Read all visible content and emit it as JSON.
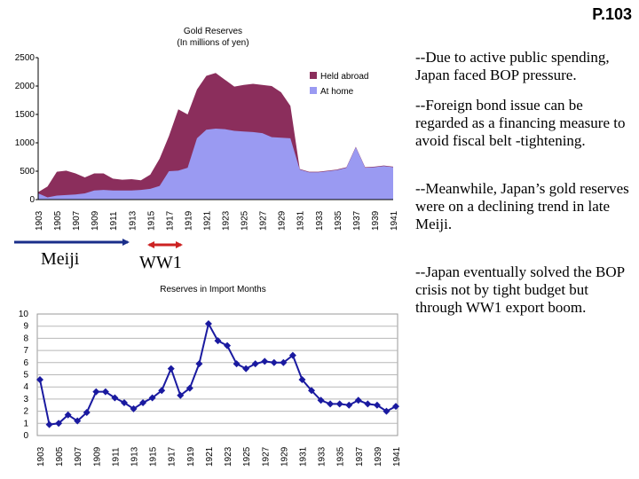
{
  "page_number": "P.103",
  "notes": [
    "--Due to active public spending, Japan faced BOP pressure.",
    "--Foreign bond issue can be regarded as a financing measure to avoid  fiscal belt -tightening.",
    "--Meanwhile, Japan’s gold reserves were on a declining trend in late Meiji.",
    "--Japan eventually solved the BOP crisis not by tight budget but through WW1 export boom."
  ],
  "eras": {
    "meiji": "Meiji",
    "ww1": "WW1"
  },
  "colors": {
    "held_abroad": "#8b2e5c",
    "at_home": "#9a9af2",
    "line": "#1a1aa0",
    "arrow_meiji": "#1a2e8a",
    "arrow_ww1": "#cc2222"
  },
  "chart_data": [
    {
      "type": "area",
      "title": "Gold Reserves",
      "subtitle": "(In millions of yen)",
      "x_ticks": [
        "1903",
        "1905",
        "1907",
        "1909",
        "1911",
        "1913",
        "1915",
        "1917",
        "1919",
        "1921",
        "1923",
        "1925",
        "1927",
        "1929",
        "1931",
        "1933",
        "1935",
        "1937",
        "1939",
        "1941"
      ],
      "ylim": [
        0,
        2500
      ],
      "y_ticks": [
        0,
        500,
        1000,
        1500,
        2000,
        2500
      ],
      "grid": false,
      "legend": "top-right",
      "stacked": true,
      "x": [
        1903,
        1904,
        1905,
        1906,
        1907,
        1908,
        1909,
        1910,
        1911,
        1912,
        1913,
        1914,
        1915,
        1916,
        1917,
        1918,
        1919,
        1920,
        1921,
        1922,
        1923,
        1924,
        1925,
        1926,
        1927,
        1928,
        1929,
        1930,
        1931,
        1932,
        1933,
        1934,
        1935,
        1936,
        1937,
        1938,
        1939,
        1940,
        1941
      ],
      "series": [
        {
          "name": "Held abroad",
          "values": [
            20,
            190,
            420,
            430,
            370,
            280,
            300,
            290,
            210,
            190,
            200,
            170,
            250,
            480,
            620,
            1080,
            940,
            860,
            950,
            980,
            870,
            780,
            820,
            850,
            850,
            900,
            800,
            570,
            10,
            10,
            10,
            10,
            10,
            10,
            10,
            10,
            10,
            10,
            10
          ]
        },
        {
          "name": "At home",
          "values": [
            110,
            40,
            70,
            80,
            90,
            110,
            160,
            170,
            160,
            160,
            160,
            170,
            190,
            240,
            500,
            510,
            560,
            1080,
            1230,
            1250,
            1240,
            1210,
            1200,
            1190,
            1170,
            1100,
            1090,
            1080,
            530,
            480,
            480,
            500,
            520,
            560,
            920,
            560,
            570,
            590,
            570
          ]
        }
      ]
    },
    {
      "type": "line",
      "title": "Reserves in Import Months",
      "x_ticks": [
        "1903",
        "1905",
        "1907",
        "1909",
        "1911",
        "1913",
        "1915",
        "1917",
        "1919",
        "1921",
        "1923",
        "1925",
        "1927",
        "1929",
        "1931",
        "1933",
        "1935",
        "1937",
        "1939",
        "1941"
      ],
      "ylim": [
        0,
        10
      ],
      "y_ticks": [
        0,
        1,
        2,
        3,
        4,
        5,
        6,
        7,
        8,
        9,
        10
      ],
      "grid": true,
      "x": [
        1903,
        1904,
        1905,
        1906,
        1907,
        1908,
        1909,
        1910,
        1911,
        1912,
        1913,
        1914,
        1915,
        1916,
        1917,
        1918,
        1919,
        1920,
        1921,
        1922,
        1923,
        1924,
        1925,
        1926,
        1927,
        1928,
        1929,
        1930,
        1931,
        1932,
        1933,
        1934,
        1935,
        1936,
        1937,
        1938,
        1939,
        1940,
        1941
      ],
      "series": [
        {
          "values": [
            4.6,
            0.9,
            1.0,
            1.7,
            1.2,
            1.9,
            3.6,
            3.6,
            3.1,
            2.7,
            2.2,
            2.7,
            3.1,
            3.7,
            5.5,
            3.3,
            3.9,
            5.9,
            9.2,
            7.8,
            7.4,
            5.9,
            5.5,
            5.9,
            6.1,
            6.0,
            6.0,
            6.6,
            4.6,
            3.7,
            2.9,
            2.6,
            2.6,
            2.5,
            2.9,
            2.6,
            2.5,
            2.0,
            2.4
          ]
        }
      ]
    }
  ]
}
